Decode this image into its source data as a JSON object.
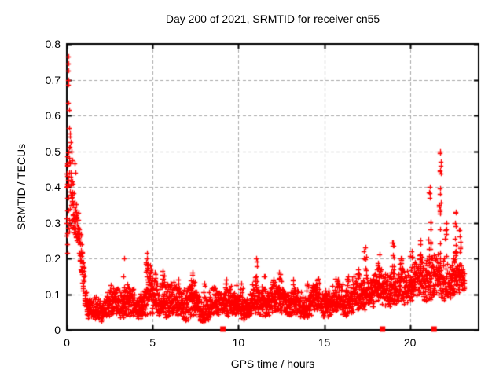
{
  "chart_data": {
    "type": "scatter",
    "title": "Day 200 of 2021, SRMTID for receiver cn55",
    "xlabel": "GPS time / hours",
    "ylabel": "SRMTID / TECUs",
    "xlim": [
      0,
      24
    ],
    "ylim": [
      0,
      0.8
    ],
    "xtick_labels": [
      "0",
      "5",
      "10",
      "15",
      "20"
    ],
    "ytick_labels": [
      "0",
      "0.1",
      "0.2",
      "0.3",
      "0.4",
      "0.5",
      "0.6",
      "0.7",
      "0.8"
    ],
    "grid": {
      "show": true,
      "color": "#a8a8a8",
      "dash": [
        4,
        3
      ]
    },
    "colors": {
      "marker": "#ff0000",
      "axis": "#000000",
      "background": "#ffffff",
      "text": "#000000"
    },
    "legend": "none",
    "seed": 2021200,
    "series": [
      {
        "name": "srmtid-points",
        "marker": "plus",
        "color": "#ff0000",
        "points_per_hour": 120,
        "descent_envelope": [
          [
            0.0,
            0.22,
            0.5
          ],
          [
            0.08,
            0.26,
            0.55
          ],
          [
            0.15,
            0.28,
            0.52
          ],
          [
            0.25,
            0.28,
            0.48
          ],
          [
            0.35,
            0.28,
            0.44
          ],
          [
            0.45,
            0.27,
            0.4
          ],
          [
            0.55,
            0.26,
            0.37
          ],
          [
            0.65,
            0.24,
            0.34
          ],
          [
            0.75,
            0.2,
            0.31
          ],
          [
            0.85,
            0.16,
            0.26
          ],
          [
            0.95,
            0.12,
            0.22
          ],
          [
            1.05,
            0.07,
            0.16
          ],
          [
            1.15,
            0.05,
            0.12
          ]
        ],
        "band_envelope": [
          [
            1.15,
            0.035,
            0.1
          ],
          [
            1.5,
            0.03,
            0.09
          ],
          [
            2.0,
            0.03,
            0.1
          ],
          [
            2.5,
            0.035,
            0.11
          ],
          [
            3.0,
            0.03,
            0.11
          ],
          [
            3.5,
            0.035,
            0.12
          ],
          [
            4.0,
            0.03,
            0.1
          ],
          [
            4.4,
            0.04,
            0.12
          ],
          [
            4.7,
            0.05,
            0.17
          ],
          [
            5.0,
            0.04,
            0.14
          ],
          [
            5.3,
            0.04,
            0.12
          ],
          [
            5.6,
            0.04,
            0.14
          ],
          [
            6.0,
            0.03,
            0.11
          ],
          [
            6.5,
            0.035,
            0.12
          ],
          [
            7.0,
            0.03,
            0.12
          ],
          [
            7.3,
            0.04,
            0.14
          ],
          [
            7.7,
            0.03,
            0.11
          ],
          [
            8.0,
            0.03,
            0.1
          ],
          [
            8.5,
            0.03,
            0.11
          ],
          [
            9.0,
            0.035,
            0.12
          ],
          [
            9.5,
            0.04,
            0.12
          ],
          [
            10.0,
            0.035,
            0.11
          ],
          [
            10.5,
            0.04,
            0.12
          ],
          [
            11.0,
            0.045,
            0.13
          ],
          [
            11.5,
            0.04,
            0.12
          ],
          [
            12.0,
            0.04,
            0.12
          ],
          [
            12.5,
            0.045,
            0.13
          ],
          [
            13.0,
            0.04,
            0.12
          ],
          [
            13.5,
            0.04,
            0.11
          ],
          [
            14.0,
            0.04,
            0.12
          ],
          [
            14.5,
            0.045,
            0.13
          ],
          [
            15.0,
            0.035,
            0.11
          ],
          [
            15.5,
            0.04,
            0.12
          ],
          [
            16.0,
            0.045,
            0.13
          ],
          [
            16.5,
            0.05,
            0.14
          ],
          [
            17.0,
            0.055,
            0.15
          ],
          [
            17.5,
            0.06,
            0.16
          ],
          [
            18.0,
            0.06,
            0.16
          ],
          [
            18.5,
            0.07,
            0.17
          ],
          [
            19.0,
            0.07,
            0.17
          ],
          [
            19.5,
            0.075,
            0.18
          ],
          [
            20.0,
            0.08,
            0.18
          ],
          [
            20.5,
            0.085,
            0.19
          ],
          [
            21.0,
            0.08,
            0.2
          ],
          [
            21.5,
            0.09,
            0.21
          ],
          [
            22.0,
            0.085,
            0.2
          ],
          [
            22.4,
            0.09,
            0.21
          ],
          [
            22.8,
            0.1,
            0.2
          ],
          [
            23.2,
            0.11,
            0.17
          ]
        ],
        "spikes": [
          [
            3.35,
            0.2,
            2
          ],
          [
            4.67,
            0.215,
            9
          ],
          [
            4.85,
            0.18,
            6
          ],
          [
            5.15,
            0.16,
            5
          ],
          [
            5.6,
            0.165,
            6
          ],
          [
            6.5,
            0.14,
            4
          ],
          [
            7.35,
            0.16,
            6
          ],
          [
            8.0,
            0.13,
            3
          ],
          [
            9.3,
            0.14,
            3
          ],
          [
            10.2,
            0.13,
            3
          ],
          [
            11.05,
            0.2,
            7
          ],
          [
            11.5,
            0.15,
            3
          ],
          [
            12.4,
            0.16,
            5
          ],
          [
            13.2,
            0.14,
            3
          ],
          [
            14.0,
            0.13,
            3
          ],
          [
            14.6,
            0.14,
            3
          ],
          [
            15.8,
            0.14,
            3
          ],
          [
            16.4,
            0.15,
            4
          ],
          [
            17.0,
            0.17,
            4
          ],
          [
            17.4,
            0.23,
            7
          ],
          [
            18.2,
            0.21,
            6
          ],
          [
            19.0,
            0.245,
            8
          ],
          [
            19.5,
            0.2,
            4
          ],
          [
            20.1,
            0.22,
            5
          ],
          [
            20.6,
            0.25,
            6
          ],
          [
            21.15,
            0.4,
            14
          ],
          [
            21.75,
            0.5,
            18
          ],
          [
            22.1,
            0.3,
            6
          ],
          [
            22.65,
            0.33,
            10
          ],
          [
            22.9,
            0.28,
            6
          ]
        ],
        "outliers": [
          [
            0.07,
            0.765
          ],
          [
            0.1,
            0.745
          ],
          [
            0.08,
            0.725
          ],
          [
            0.11,
            0.7
          ],
          [
            0.09,
            0.685
          ],
          [
            0.09,
            0.635
          ],
          [
            0.12,
            0.615
          ],
          [
            0.13,
            0.565
          ],
          [
            0.17,
            0.55
          ],
          [
            0.2,
            0.54
          ],
          [
            0.24,
            0.525
          ],
          [
            0.16,
            0.51
          ],
          [
            0.28,
            0.5
          ],
          [
            0.33,
            0.475
          ],
          [
            0.05,
            0.46
          ],
          [
            0.46,
            0.465
          ],
          [
            0.52,
            0.44
          ],
          [
            0.03,
            0.43
          ],
          [
            0.02,
            0.4
          ],
          [
            0.04,
            0.37
          ],
          [
            0.03,
            0.335
          ],
          [
            0.02,
            0.3
          ],
          [
            0.05,
            0.27
          ],
          [
            0.03,
            0.24
          ],
          [
            0.06,
            0.215
          ],
          [
            0.88,
            0.24
          ],
          [
            0.92,
            0.215
          ],
          [
            0.96,
            0.19
          ],
          [
            1.0,
            0.165
          ],
          [
            1.02,
            0.14
          ]
        ]
      },
      {
        "name": "event-markers",
        "marker": "filled-square",
        "color": "#ff0000",
        "points": [
          [
            9.1,
            0
          ],
          [
            18.4,
            0
          ],
          [
            21.4,
            0
          ]
        ]
      }
    ]
  }
}
